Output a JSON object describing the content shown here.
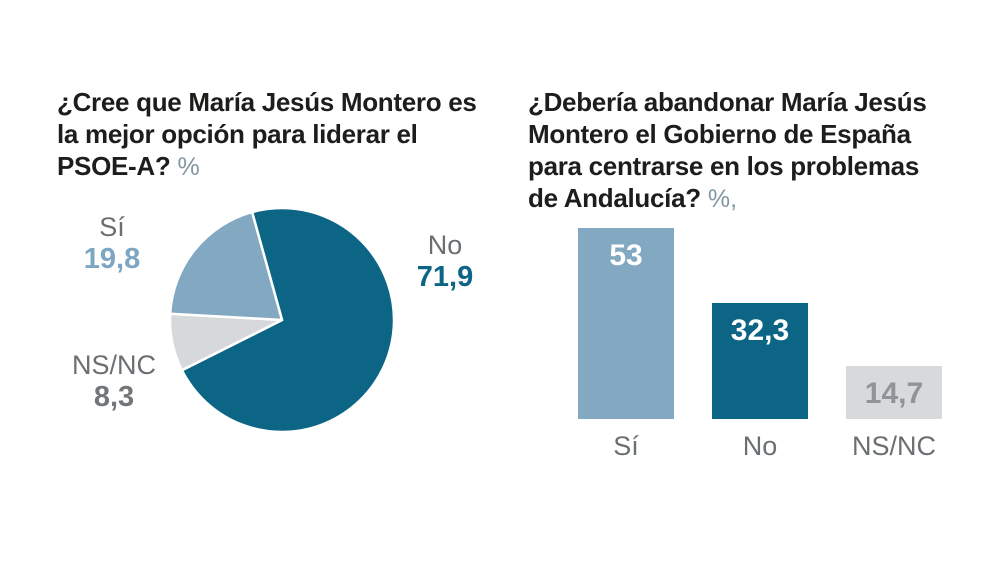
{
  "colors": {
    "background": "#ffffff",
    "title": "#1d1d1b",
    "muted_label": "#6b6f72",
    "unit": "#8197a3",
    "teal": "#0d6585",
    "steel_blue": "#83a8c1",
    "light_gray": "#d6d8da"
  },
  "chart_data": [
    {
      "type": "pie",
      "title": "¿Cree que María Jesús Montero es\nla mejor opción para liderar el\nPSOE-A?",
      "unit": "%",
      "start_angle_deg": -15.5,
      "direction": "clockwise",
      "legend": "none",
      "slices": [
        {
          "key": "no",
          "label": "No",
          "value": 71.9,
          "display": "71,9",
          "color": "#0d6585",
          "value_color": "#0d6585"
        },
        {
          "key": "nsnc",
          "label": "NS/NC",
          "value": 8.3,
          "display": "8,3",
          "color": "#d6d8da",
          "value_color": "#737679"
        },
        {
          "key": "si",
          "label": "Sí",
          "value": 19.8,
          "display": "19,8",
          "color": "#83a8c1",
          "value_color": "#7da6c2"
        }
      ]
    },
    {
      "type": "bar",
      "title": "¿Debería abandonar María Jesús\nMontero el Gobierno de España\npara centrarse en los problemas\nde Andalucía?",
      "unit": "%,",
      "categories": [
        "Sí",
        "No",
        "NS/NC"
      ],
      "keys": [
        "si",
        "no",
        "nsnc"
      ],
      "values": [
        53,
        32.3,
        14.7
      ],
      "display_values": [
        "53",
        "32,3",
        "14,7"
      ],
      "colors": [
        "#83a8c1",
        "#0d6585",
        "#d8d9db"
      ],
      "value_label_colors": [
        "#ffffff",
        "#ffffff",
        "#909397"
      ],
      "ylim": [
        0,
        53
      ],
      "grid": false,
      "legend": "none"
    }
  ]
}
